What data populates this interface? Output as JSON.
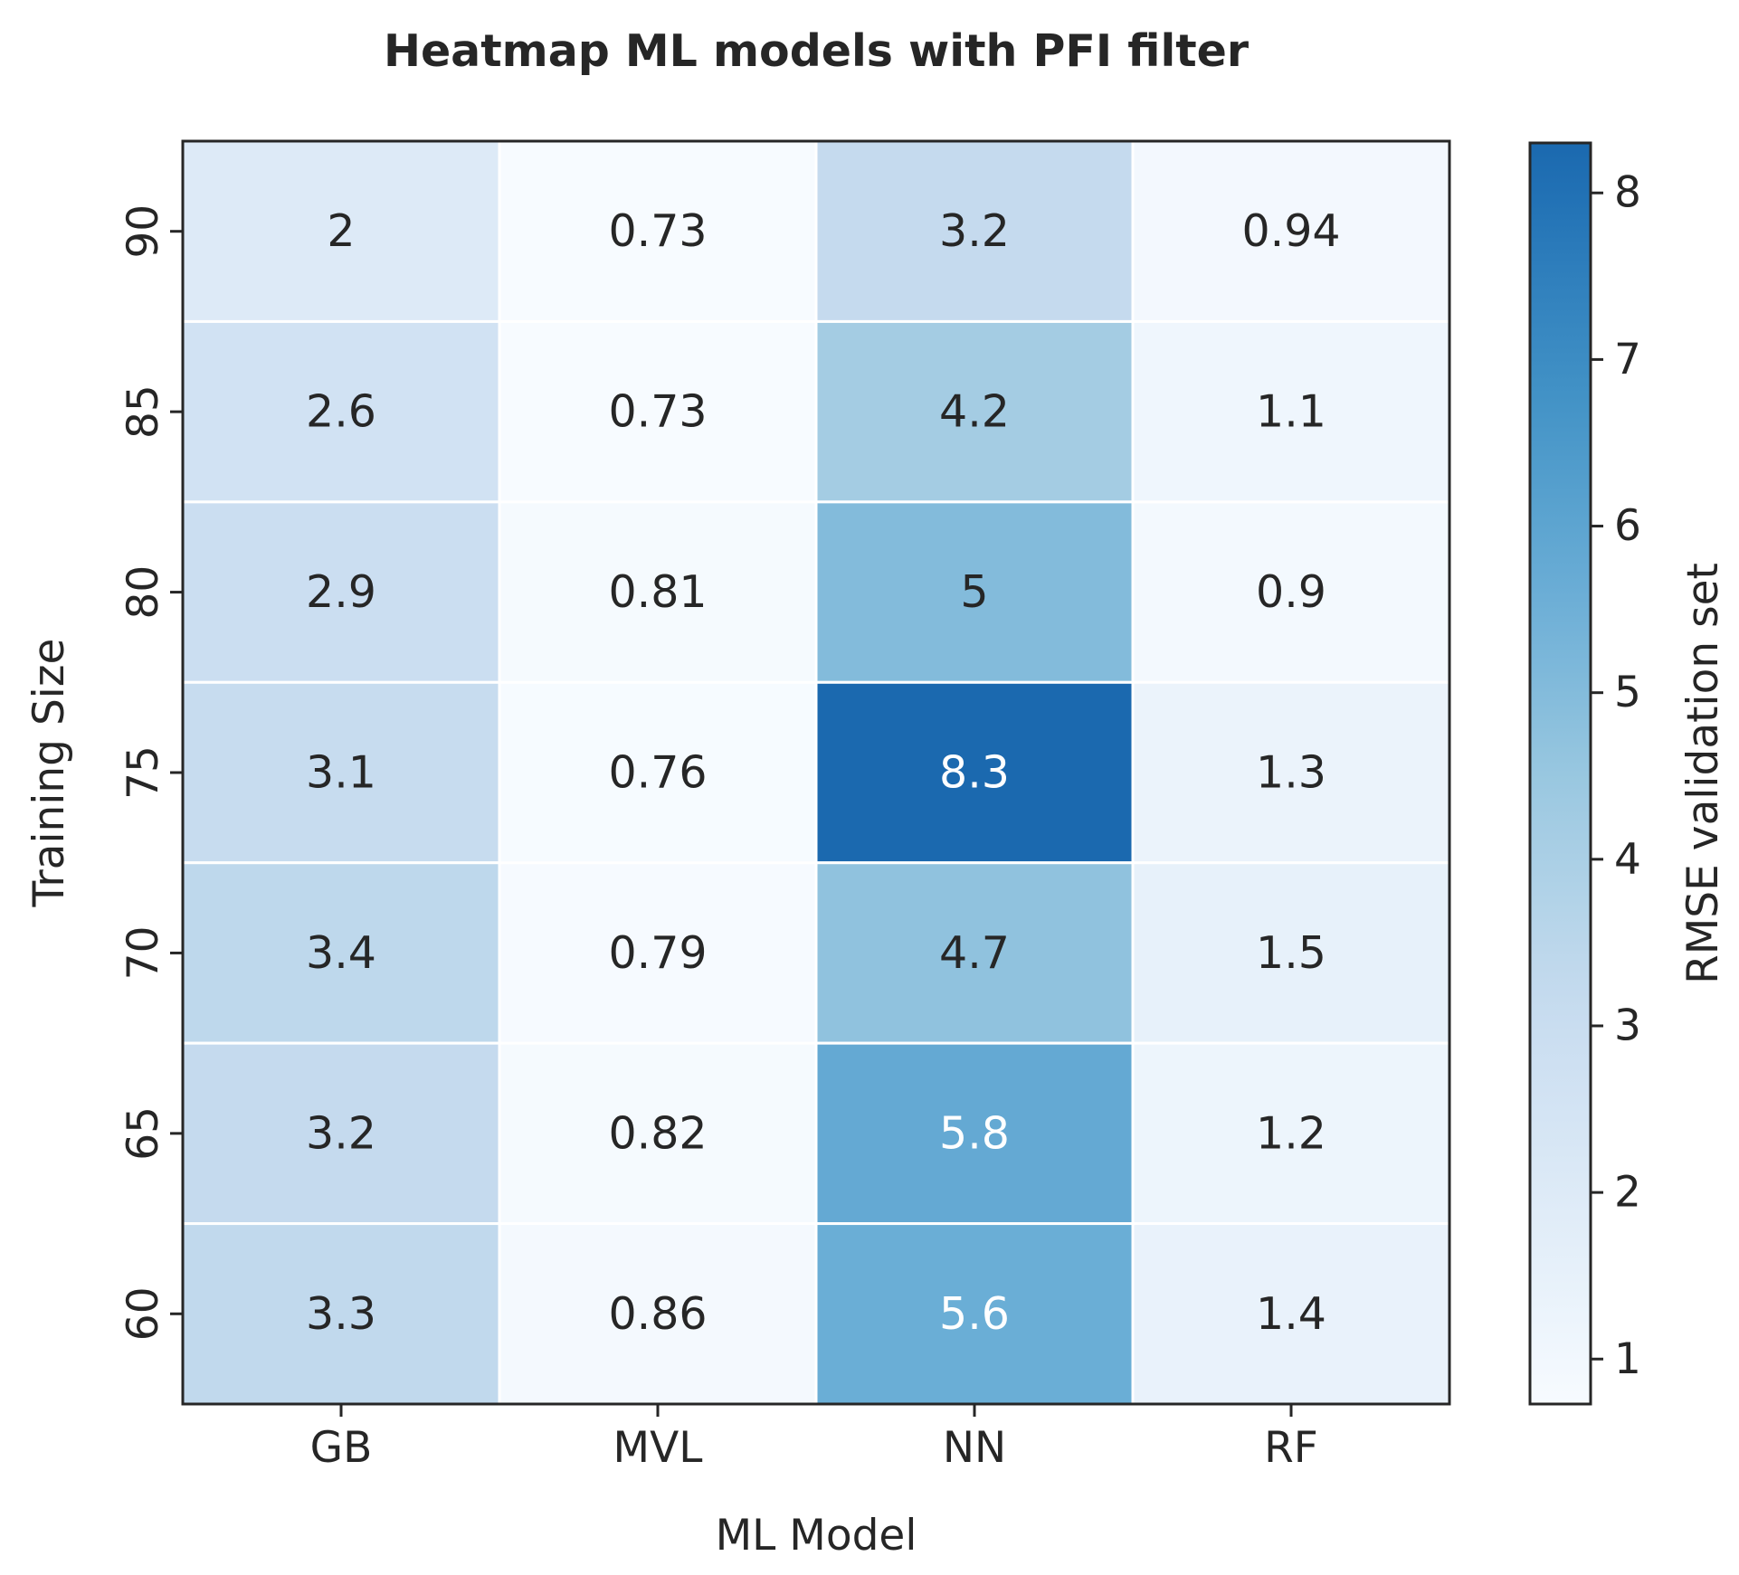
{
  "chart_data": {
    "type": "heatmap",
    "title": "Heatmap ML models with PFI filter",
    "xlabel": "ML Model",
    "ylabel": "Training Size",
    "x_categories": [
      "GB",
      "MVL",
      "NN",
      "RF"
    ],
    "y_categories": [
      "90",
      "85",
      "80",
      "75",
      "70",
      "65",
      "60"
    ],
    "values": [
      [
        2,
        0.73,
        3.2,
        0.94
      ],
      [
        2.6,
        0.73,
        4.2,
        1.1
      ],
      [
        2.9,
        0.81,
        5,
        0.9
      ],
      [
        3.1,
        0.76,
        8.3,
        1.3
      ],
      [
        3.4,
        0.79,
        4.7,
        1.5
      ],
      [
        3.2,
        0.82,
        5.8,
        1.2
      ],
      [
        3.3,
        0.86,
        5.6,
        1.4
      ]
    ],
    "colorbar": {
      "label": "RMSE validation set",
      "range": [
        0.73,
        8.3
      ],
      "ticks": [
        1,
        2,
        3,
        4,
        5,
        6,
        7,
        8
      ],
      "colormap": "Blues",
      "low_color": "#f7fbff",
      "high_color": "#1967ab"
    },
    "annotations": true
  }
}
